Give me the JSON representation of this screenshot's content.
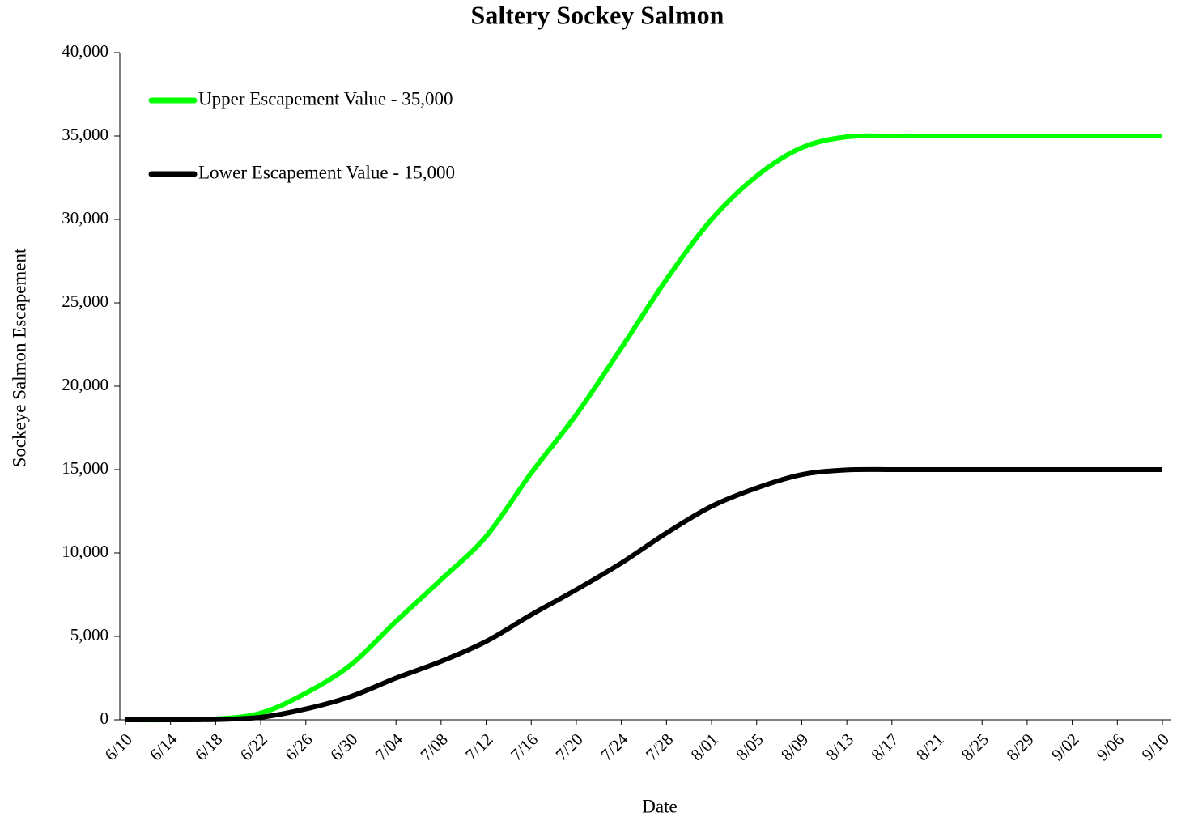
{
  "chart_data": {
    "type": "line",
    "title": "Saltery Sockey Salmon",
    "x_label": "Date",
    "y_label": "Sockeye Salmon Escapement",
    "categories": [
      "6/10",
      "6/14",
      "6/18",
      "6/22",
      "6/26",
      "6/30",
      "7/04",
      "7/08",
      "7/12",
      "7/16",
      "7/20",
      "7/24",
      "7/28",
      "8/01",
      "8/05",
      "8/09",
      "8/13",
      "8/17",
      "8/21",
      "8/25",
      "8/29",
      "9/02",
      "9/06",
      "9/10"
    ],
    "series": [
      {
        "name": "Upper Escapement Value - 35,000",
        "color": "#00ff00",
        "values": [
          0,
          0,
          50,
          400,
          1600,
          3300,
          5900,
          8400,
          11000,
          14800,
          18300,
          22300,
          26400,
          30000,
          32600,
          34300,
          34950,
          35000,
          35000,
          35000,
          35000,
          35000,
          35000,
          35000
        ]
      },
      {
        "name": "Lower Escapement Value - 15,000",
        "color": "#000000",
        "values": [
          0,
          0,
          20,
          150,
          650,
          1400,
          2500,
          3500,
          4700,
          6300,
          7800,
          9400,
          11200,
          12800,
          13900,
          14700,
          14980,
          15000,
          15000,
          15000,
          15000,
          15000,
          15000,
          15000
        ]
      }
    ],
    "ylim": [
      0,
      40000
    ],
    "yticks": [
      0,
      {
        "value": 5000,
        "label": "5,000"
      },
      {
        "value": 10000,
        "label": "10,000"
      },
      {
        "value": 15000,
        "label": "15,000"
      },
      {
        "value": 20000,
        "label": "20,000"
      },
      {
        "value": 25000,
        "label": "25,000"
      },
      {
        "value": 30000,
        "label": "30,000"
      },
      {
        "value": 35000,
        "label": "35,000"
      },
      {
        "value": 40000,
        "label": "40,000"
      }
    ],
    "legend": "upper-left",
    "grid": false
  }
}
